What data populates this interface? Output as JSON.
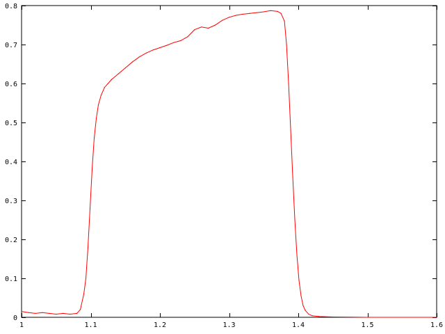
{
  "chart_data": {
    "type": "line",
    "title": "",
    "xlabel": "",
    "ylabel": "",
    "xlim": [
      1.0,
      1.6
    ],
    "ylim": [
      0.0,
      0.8
    ],
    "x_ticks": [
      "1",
      "1.1",
      "1.2",
      "1.3",
      "1.4",
      "1.5",
      "1.6"
    ],
    "y_ticks": [
      "0",
      "0.1",
      "0.2",
      "0.3",
      "0.4",
      "0.5",
      "0.6",
      "0.7",
      "0.8"
    ],
    "grid": false,
    "legend": "none",
    "colors": {
      "series": "#ff0000",
      "axis": "#000000",
      "background": "#ffffff"
    },
    "series": [
      {
        "x": [
          1.0,
          1.01,
          1.02,
          1.03,
          1.04,
          1.05,
          1.06,
          1.07,
          1.08,
          1.085,
          1.09,
          1.093,
          1.096,
          1.099,
          1.102,
          1.105,
          1.108,
          1.111,
          1.115,
          1.12,
          1.125,
          1.13,
          1.14,
          1.15,
          1.16,
          1.17,
          1.18,
          1.19,
          1.2,
          1.21,
          1.22,
          1.23,
          1.24,
          1.25,
          1.26,
          1.27,
          1.28,
          1.29,
          1.3,
          1.31,
          1.32,
          1.33,
          1.34,
          1.35,
          1.36,
          1.37,
          1.375,
          1.38,
          1.383,
          1.386,
          1.389,
          1.392,
          1.395,
          1.398,
          1.401,
          1.404,
          1.407,
          1.41,
          1.415,
          1.42,
          1.43,
          1.45,
          1.5,
          1.6
        ],
        "y": [
          0.015,
          0.012,
          0.01,
          0.012,
          0.01,
          0.008,
          0.01,
          0.008,
          0.01,
          0.02,
          0.06,
          0.1,
          0.18,
          0.28,
          0.38,
          0.46,
          0.51,
          0.545,
          0.57,
          0.59,
          0.6,
          0.61,
          0.625,
          0.64,
          0.655,
          0.668,
          0.678,
          0.686,
          0.692,
          0.698,
          0.705,
          0.71,
          0.72,
          0.738,
          0.745,
          0.742,
          0.75,
          0.762,
          0.77,
          0.775,
          0.778,
          0.78,
          0.782,
          0.784,
          0.787,
          0.785,
          0.78,
          0.76,
          0.7,
          0.6,
          0.48,
          0.36,
          0.25,
          0.16,
          0.095,
          0.055,
          0.03,
          0.018,
          0.008,
          0.004,
          0.002,
          0.001,
          0.0,
          0.0
        ]
      }
    ]
  }
}
